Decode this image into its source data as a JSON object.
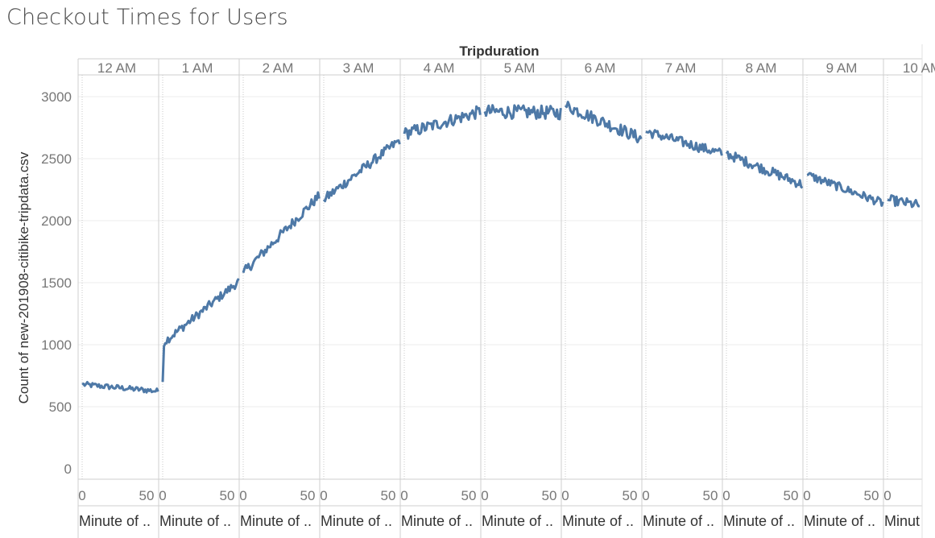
{
  "title": "Checkout Times for Users",
  "colors": {
    "line": "#4e79a7",
    "grid": "#ececec",
    "divider": "#cfcfcf",
    "text": "#777777"
  },
  "chart_data": {
    "type": "line",
    "title": "Checkout Times for Users",
    "column_header": "Tripduration",
    "ylabel": "Count of new-201908-citibike-tripdata.csv",
    "xlabel": "Minute of ..",
    "ylim": [
      0,
      3200
    ],
    "yticks": [
      0,
      500,
      1000,
      1500,
      2000,
      2500,
      3000
    ],
    "x_ticks": [
      0,
      50
    ],
    "grid": true,
    "panels": [
      {
        "hour": "12 AM",
        "start": 680,
        "end": 625,
        "noise": 22,
        "minutes": 60
      },
      {
        "hour": "1 AM",
        "start": 700,
        "end": 1510,
        "noise": 35,
        "minutes": 60,
        "jump": 1020
      },
      {
        "hour": "2 AM",
        "start": 1580,
        "end": 2200,
        "noise": 40,
        "minutes": 60
      },
      {
        "hour": "3 AM",
        "start": 2170,
        "end": 2650,
        "noise": 40,
        "minutes": 60
      },
      {
        "hour": "4 AM",
        "start": 2700,
        "end": 2880,
        "noise": 50,
        "minutes": 60
      },
      {
        "hour": "5 AM",
        "start": 2880,
        "end": 2870,
        "noise": 55,
        "minutes": 60
      },
      {
        "hour": "6 AM",
        "start": 2930,
        "end": 2660,
        "noise": 50,
        "minutes": 60
      },
      {
        "hour": "7 AM",
        "start": 2720,
        "end": 2540,
        "noise": 40,
        "minutes": 60
      },
      {
        "hour": "8 AM",
        "start": 2540,
        "end": 2290,
        "noise": 40,
        "minutes": 60
      },
      {
        "hour": "9 AM",
        "start": 2370,
        "end": 2140,
        "noise": 35,
        "minutes": 60
      },
      {
        "hour": "10 AM",
        "start": 2170,
        "end": 2060,
        "noise": 40,
        "minutes": 26
      }
    ],
    "x_axis_labels": [
      "Minute of ..",
      "Minute of ..",
      "Minute of ..",
      "Minute of ..",
      "Minute of ..",
      "Minute of ..",
      "Minute of ..",
      "Minute of ..",
      "Minute of ..",
      "Minute of ..",
      "Minut"
    ]
  }
}
